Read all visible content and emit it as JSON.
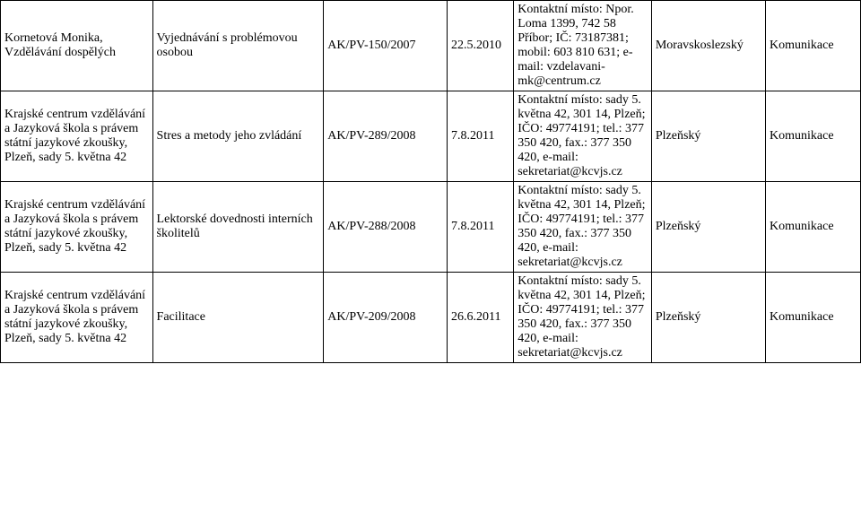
{
  "table": {
    "rows": [
      {
        "c1": "Kornetová Monika, Vzdělávání dospělých",
        "c2": "Vyjednávání s problémovou osobou",
        "c3": "AK/PV-150/2007",
        "c4": "22.5.2010",
        "c5": "Kontaktní místo: Npor. Loma 1399, 742 58  Příbor; IČ: 73187381; mobil: 603 810 631; e-mail: vzdelavani-mk@centrum.cz",
        "c6": "Moravskoslezský",
        "c7": "Komunikace"
      },
      {
        "c1": "Krajské centrum vzdělávání a Jazyková škola s právem státní jazykové zkoušky, Plzeň, sady 5. května 42",
        "c2": "Stres a metody jeho zvládání",
        "c3": "AK/PV-289/2008",
        "c4": "7.8.2011",
        "c5": "Kontaktní místo: sady 5. května 42, 301 14, Plzeň; IČO: 49774191; tel.: 377 350 420, fax.: 377 350 420, e-mail: sekretariat@kcvjs.cz",
        "c6": "Plzeňský",
        "c7": "Komunikace"
      },
      {
        "c1": "Krajské centrum vzdělávání a Jazyková škola s právem státní jazykové zkoušky, Plzeň, sady 5. května 42",
        "c2": "Lektorské dovednosti interních školitelů",
        "c3": "AK/PV-288/2008",
        "c4": "7.8.2011",
        "c5": "Kontaktní místo: sady 5. května 42, 301 14, Plzeň; IČO: 49774191; tel.: 377 350 420, fax.: 377 350 420, e-mail: sekretariat@kcvjs.cz",
        "c6": "Plzeňský",
        "c7": "Komunikace"
      },
      {
        "c1": "Krajské centrum vzdělávání a Jazyková škola s právem státní jazykové zkoušky, Plzeň, sady 5. května 42",
        "c2": "Facilitace",
        "c3": "AK/PV-209/2008",
        "c4": "26.6.2011",
        "c5": "Kontaktní místo: sady 5. května 42, 301 14, Plzeň; IČO: 49774191; tel.: 377 350 420, fax.: 377 350 420, e-mail: sekretariat@kcvjs.cz",
        "c6": "Plzeňský",
        "c7": "Komunikace"
      }
    ]
  }
}
